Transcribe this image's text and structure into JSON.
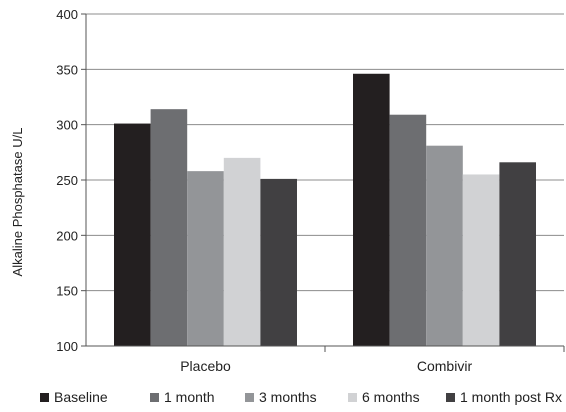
{
  "chart_data": {
    "type": "bar",
    "title": "",
    "xlabel": "",
    "ylabel": "Alkaline Phosphatase U/L",
    "ylim": [
      100,
      400
    ],
    "yticks": [
      100,
      150,
      200,
      250,
      300,
      350,
      400
    ],
    "grid": true,
    "legend_position": "bottom",
    "categories": [
      "Placebo",
      "Combivir"
    ],
    "series": [
      {
        "name": "Baseline",
        "color": "#231f20",
        "values": [
          301,
          346
        ]
      },
      {
        "name": "1 month",
        "color": "#6d6e71",
        "values": [
          314,
          309
        ]
      },
      {
        "name": "3 months",
        "color": "#939598",
        "values": [
          258,
          281
        ]
      },
      {
        "name": "6 months",
        "color": "#d1d2d4",
        "values": [
          270,
          255
        ]
      },
      {
        "name": "1 month post Rx",
        "color": "#414042",
        "values": [
          251,
          266
        ]
      }
    ]
  }
}
